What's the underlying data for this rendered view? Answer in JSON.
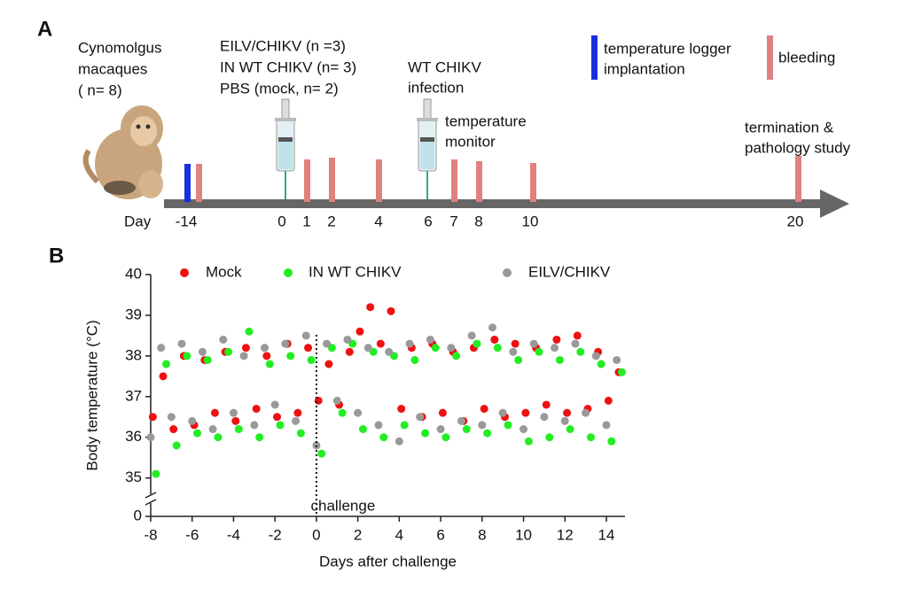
{
  "panel_a": {
    "label": "A",
    "subjects": [
      "Cynomolgus",
      "macaques",
      "( n= 8)"
    ],
    "groups": [
      "EILV/CHIKV (n =3)",
      "IN WT CHIKV (n= 3)",
      "PBS (mock, n= 2)"
    ],
    "infection": [
      "WT CHIKV",
      "infection"
    ],
    "monitor": [
      "temperature",
      "monitor"
    ],
    "termination": [
      "termination &",
      "pathology study"
    ],
    "logger": [
      "temperature logger",
      "implantation"
    ],
    "bleeding": "bleeding",
    "day_label": "Day",
    "days": [
      "-14",
      "0",
      "1",
      "2",
      "4",
      "6",
      "7",
      "8",
      "10",
      "20"
    ]
  },
  "panel_b": {
    "label": "B"
  },
  "chart_data": {
    "type": "scatter",
    "x_label": "Days after challenge",
    "y_label": "Body temperature  (°C)",
    "annotation": "challenge",
    "xlim": [
      -8,
      14.9
    ],
    "xticks": [
      -8,
      -6,
      -4,
      -2,
      0,
      2,
      4,
      6,
      8,
      10,
      12,
      14
    ],
    "ylim": [
      0,
      40
    ],
    "yticks": [
      0,
      35,
      36,
      37,
      38,
      39,
      40
    ],
    "y_break": [
      1,
      34.6
    ],
    "legend": "top",
    "series": [
      {
        "name": "Mock",
        "color": "#ee1111",
        "x": [
          -7.9,
          -7.4,
          -6.9,
          -6.4,
          -5.9,
          -5.4,
          -4.9,
          -4.4,
          -3.9,
          -3.4,
          -2.9,
          -2.4,
          -1.9,
          -1.4,
          -0.9,
          -0.4,
          0.1,
          0.6,
          1.1,
          1.6,
          2.1,
          2.6,
          3.1,
          3.6,
          4.1,
          4.6,
          5.1,
          5.6,
          6.1,
          6.6,
          7.1,
          7.6,
          8.1,
          8.6,
          9.1,
          9.6,
          10.1,
          10.6,
          11.1,
          11.6,
          12.1,
          12.6,
          13.1,
          13.6,
          14.1,
          14.6
        ],
        "values": [
          36.5,
          37.5,
          36.2,
          38.0,
          36.3,
          37.9,
          36.6,
          38.1,
          36.4,
          38.2,
          36.7,
          38.0,
          36.5,
          38.3,
          36.6,
          38.2,
          36.9,
          37.8,
          36.8,
          38.1,
          38.6,
          39.2,
          38.3,
          39.1,
          36.7,
          38.2,
          36.5,
          38.3,
          36.6,
          38.1,
          36.4,
          38.2,
          36.7,
          38.4,
          36.5,
          38.3,
          36.6,
          38.2,
          36.8,
          38.4,
          36.6,
          38.5,
          36.7,
          38.1,
          36.9,
          37.6
        ]
      },
      {
        "name": "IN WT CHIKV",
        "color": "#22ee22",
        "x": [
          -7.75,
          -7.25,
          -6.75,
          -6.25,
          -5.75,
          -5.25,
          -4.75,
          -4.25,
          -3.75,
          -3.25,
          -2.75,
          -2.25,
          -1.75,
          -1.25,
          -0.75,
          -0.25,
          0.25,
          0.75,
          1.25,
          1.75,
          2.25,
          2.75,
          3.25,
          3.75,
          4.25,
          4.75,
          5.25,
          5.75,
          6.25,
          6.75,
          7.25,
          7.75,
          8.25,
          8.75,
          9.25,
          9.75,
          10.25,
          10.75,
          11.25,
          11.75,
          12.25,
          12.75,
          13.25,
          13.75,
          14.25,
          14.75
        ],
        "values": [
          35.1,
          37.8,
          35.8,
          38.0,
          36.1,
          37.9,
          36.0,
          38.1,
          36.2,
          38.6,
          36.0,
          37.8,
          36.3,
          38.0,
          36.1,
          37.9,
          35.6,
          38.2,
          36.6,
          38.3,
          36.2,
          38.1,
          36.0,
          38.0,
          36.3,
          37.9,
          36.1,
          38.2,
          36.0,
          38.0,
          36.2,
          38.3,
          36.1,
          38.2,
          36.3,
          37.9,
          35.9,
          38.1,
          36.0,
          37.9,
          36.2,
          38.1,
          36.0,
          37.8,
          35.9,
          37.6
        ]
      },
      {
        "name": "EILV/CHIKV",
        "color": "#999999",
        "x": [
          -8,
          -7.5,
          -7,
          -6.5,
          -6,
          -5.5,
          -5,
          -4.5,
          -4,
          -3.5,
          -3,
          -2.5,
          -2,
          -1.5,
          -1,
          -0.5,
          0,
          0.5,
          1,
          1.5,
          2,
          2.5,
          3,
          3.5,
          4,
          4.5,
          5,
          5.5,
          6,
          6.5,
          7,
          7.5,
          8,
          8.5,
          9,
          9.5,
          10,
          10.5,
          11,
          11.5,
          12,
          12.5,
          13,
          13.5,
          14,
          14.5
        ],
        "values": [
          36.0,
          38.2,
          36.5,
          38.3,
          36.4,
          38.1,
          36.2,
          38.4,
          36.6,
          38.0,
          36.3,
          38.2,
          36.8,
          38.3,
          36.4,
          38.5,
          35.8,
          38.3,
          36.9,
          38.4,
          36.6,
          38.2,
          36.3,
          38.1,
          35.9,
          38.3,
          36.5,
          38.4,
          36.2,
          38.2,
          36.4,
          38.5,
          36.3,
          38.7,
          36.6,
          38.1,
          36.2,
          38.3,
          36.5,
          38.2,
          36.4,
          38.3,
          36.6,
          38.0,
          36.3,
          37.9
        ]
      }
    ]
  }
}
